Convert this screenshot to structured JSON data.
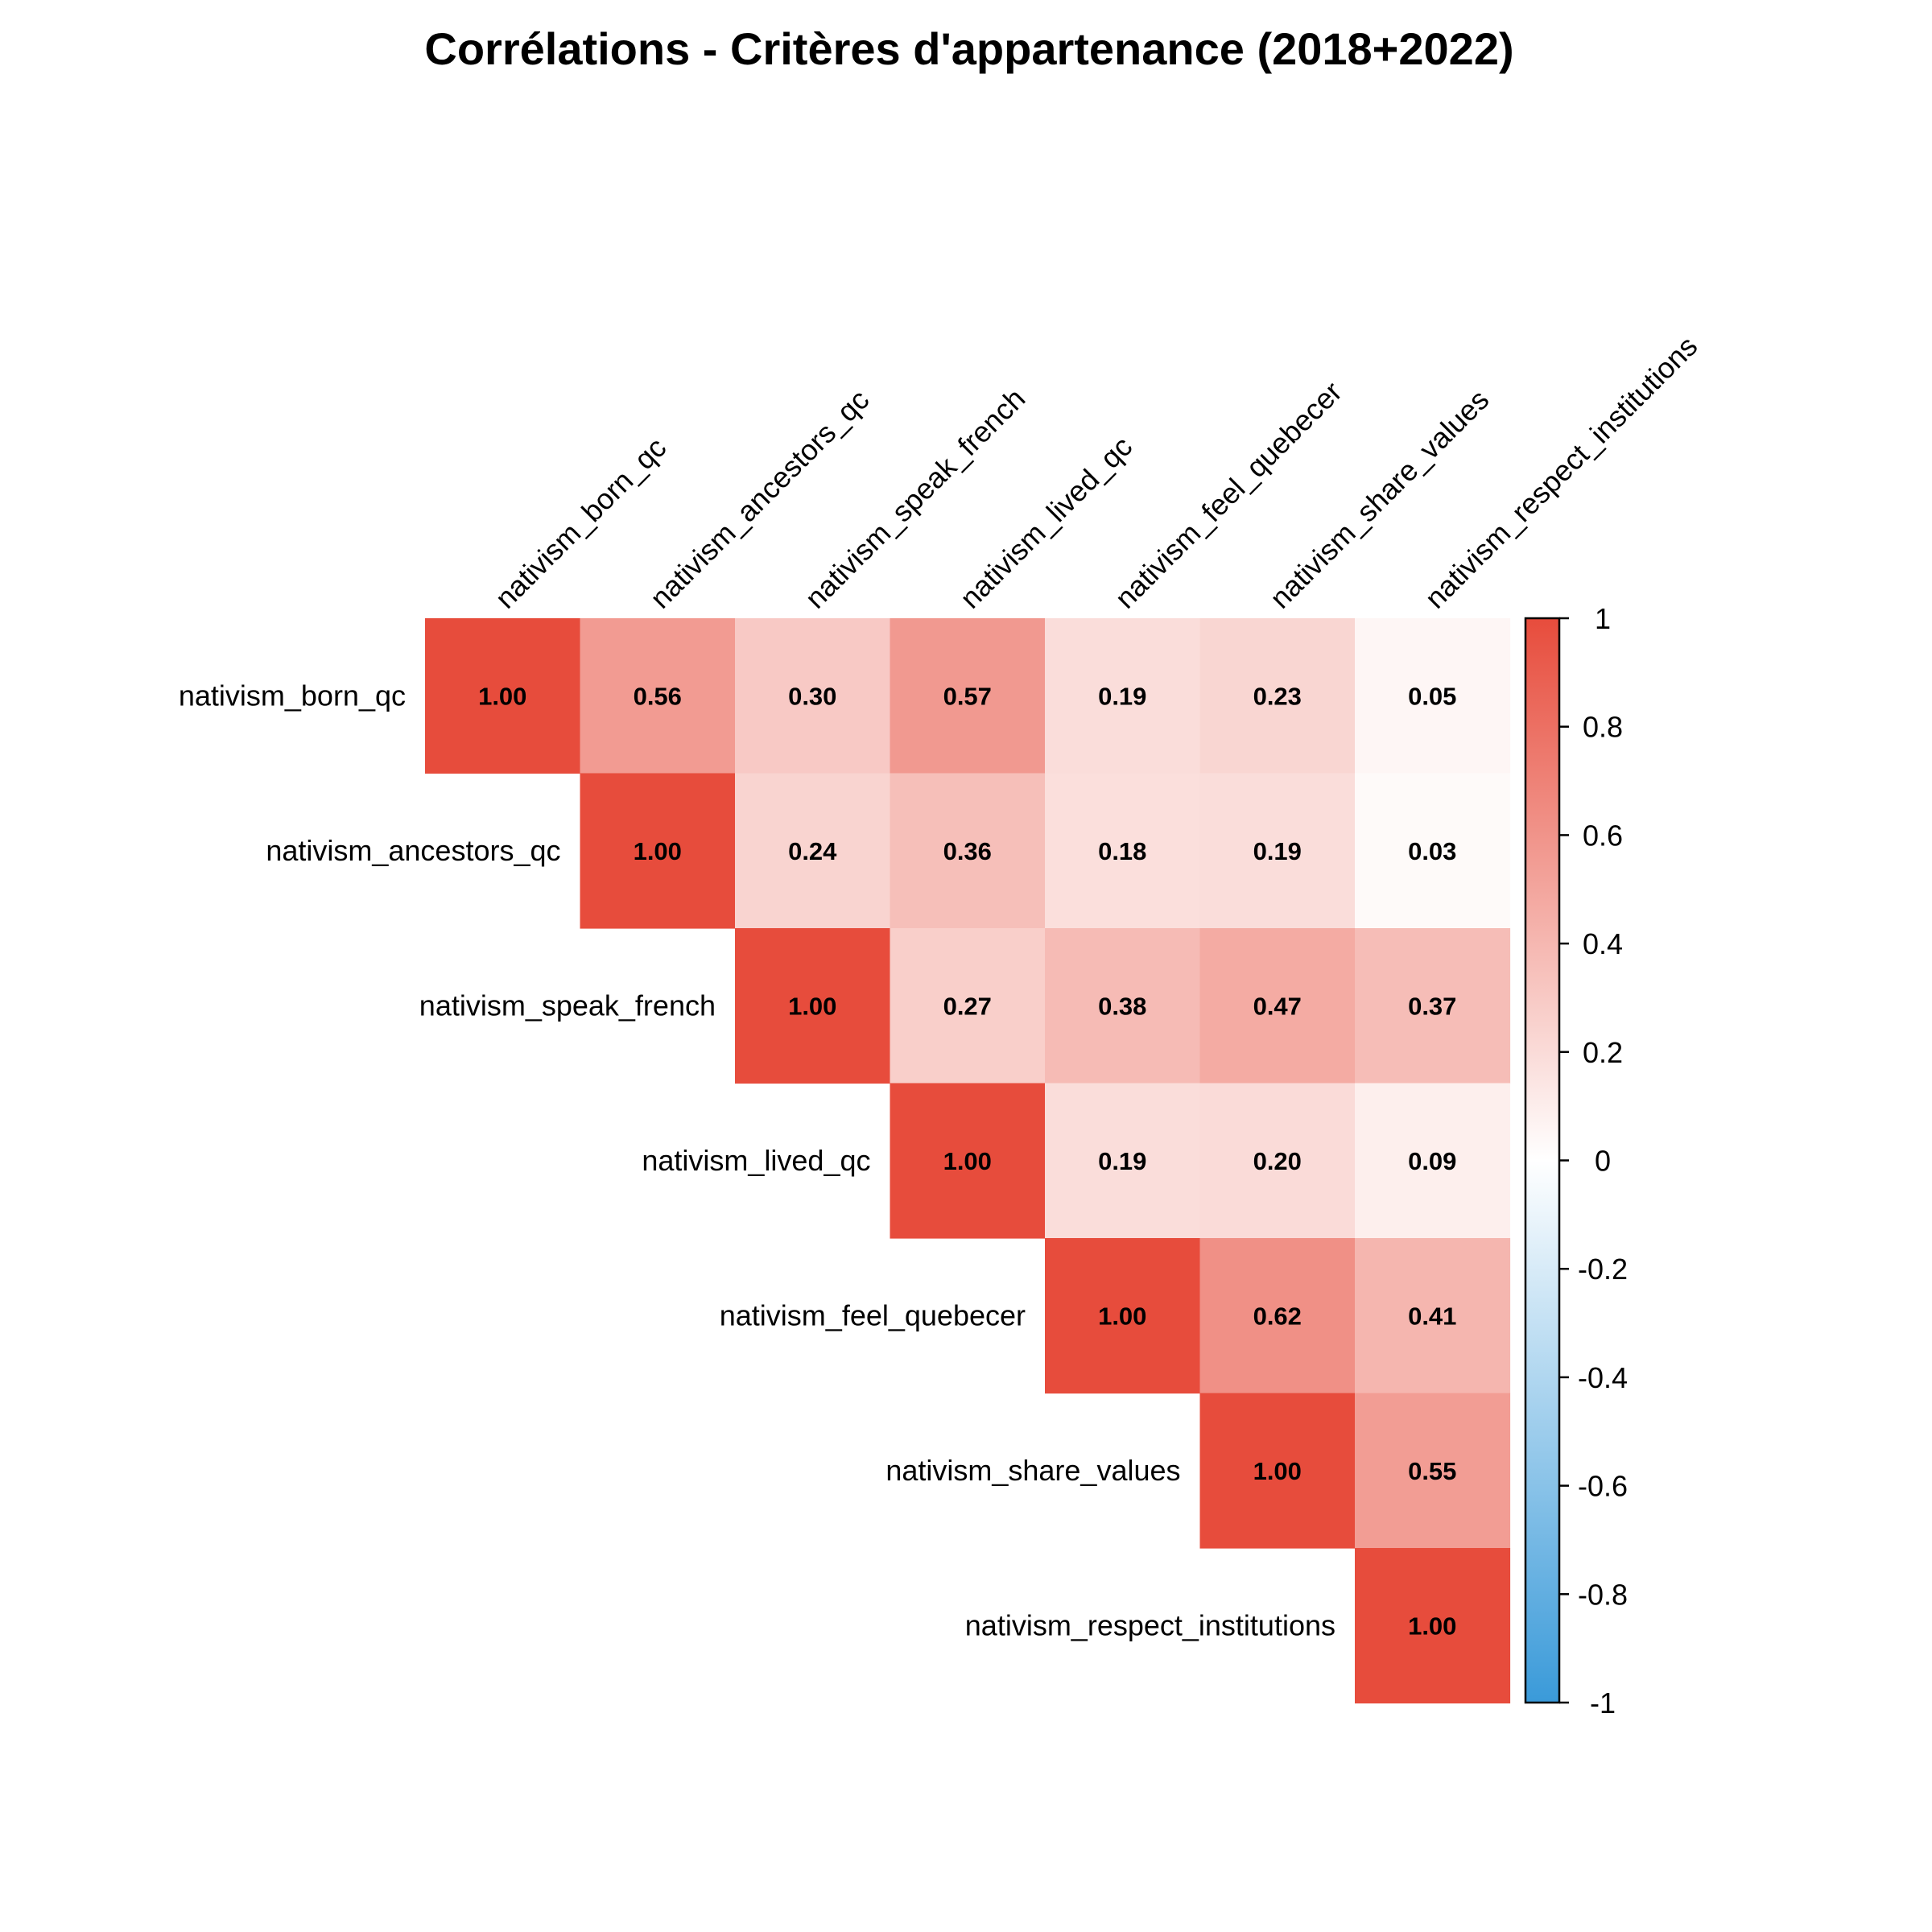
{
  "chart_data": {
    "type": "heatmap",
    "title": "Corrélations - Critères d'appartenance (2018+2022)",
    "variables": [
      "nativism_born_qc",
      "nativism_ancestors_qc",
      "nativism_speak_french",
      "nativism_lived_qc",
      "nativism_feel_quebecer",
      "nativism_share_values",
      "nativism_respect_institutions"
    ],
    "triangle": "upper",
    "matrix": [
      [
        1.0,
        0.56,
        0.3,
        0.57,
        0.19,
        0.23,
        0.05
      ],
      [
        null,
        1.0,
        0.24,
        0.36,
        0.18,
        0.19,
        0.03
      ],
      [
        null,
        null,
        1.0,
        0.27,
        0.38,
        0.47,
        0.37
      ],
      [
        null,
        null,
        null,
        1.0,
        0.19,
        0.2,
        0.09
      ],
      [
        null,
        null,
        null,
        null,
        1.0,
        0.62,
        0.41
      ],
      [
        null,
        null,
        null,
        null,
        null,
        1.0,
        0.55
      ],
      [
        null,
        null,
        null,
        null,
        null,
        null,
        1.0
      ]
    ],
    "value_labels": [
      [
        "1.00",
        "0.56",
        "0.30",
        "0.57",
        "0.19",
        "0.23",
        "0.05"
      ],
      [
        null,
        "1.00",
        "0.24",
        "0.36",
        "0.18",
        "0.19",
        "0.03"
      ],
      [
        null,
        null,
        "1.00",
        "0.27",
        "0.38",
        "0.47",
        "0.37"
      ],
      [
        null,
        null,
        null,
        "1.00",
        "0.19",
        "0.20",
        "0.09"
      ],
      [
        null,
        null,
        null,
        null,
        "1.00",
        "0.62",
        "0.41"
      ],
      [
        null,
        null,
        null,
        null,
        null,
        "1.00",
        "0.55"
      ],
      [
        null,
        null,
        null,
        null,
        null,
        null,
        "1.00"
      ]
    ],
    "color_scale": {
      "range": [
        -1,
        1
      ],
      "low_color": "#3a9ad9",
      "mid_color": "#ffffff",
      "high_color": "#e74c3c",
      "ticks": [
        "1",
        "0.8",
        "0.6",
        "0.4",
        "0.2",
        "0",
        "-0.2",
        "-0.4",
        "-0.6",
        "-0.8",
        "-1"
      ]
    },
    "legend": "right"
  }
}
